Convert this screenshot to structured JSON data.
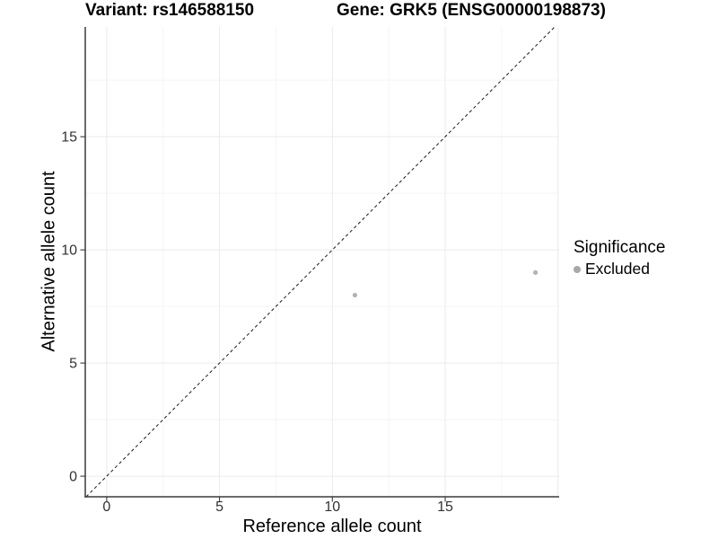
{
  "chart_data": {
    "type": "scatter",
    "title_left": "Variant: rs146588150",
    "title_right": "Gene: GRK5 (ENSG00000198873)",
    "xlabel": "Reference allele count",
    "ylabel": "Alternative allele count",
    "xlim": [
      -0.95,
      20.05
    ],
    "ylim": [
      -0.91,
      19.85
    ],
    "x_ticks": [
      0,
      5,
      10,
      15
    ],
    "y_ticks": [
      0,
      5,
      10,
      15
    ],
    "x_grid_major": [
      0,
      5,
      10,
      15,
      20
    ],
    "y_grid_major": [
      0,
      5,
      10,
      15
    ],
    "x_grid_minor": [
      2.5,
      7.5,
      12.5,
      17.5
    ],
    "y_grid_minor": [
      2.5,
      7.5,
      12.5,
      17.5
    ],
    "grid": true,
    "identity_line": {
      "slope": 1,
      "intercept": 0,
      "style": "dashed",
      "color": "#1a1a1a"
    },
    "series": [
      {
        "name": "Excluded",
        "color": "#b3b3b3",
        "point_radius": 2.6,
        "points": [
          {
            "x": 11,
            "y": 8
          },
          {
            "x": 19,
            "y": 9
          }
        ]
      }
    ],
    "legend": {
      "title": "Significance",
      "position": "right",
      "items": [
        {
          "label": "Excluded",
          "color": "#a8a8a8"
        }
      ]
    },
    "colors": {
      "axis_line": "#3a3a3a",
      "tick_label": "#333333",
      "grid_major": "#ebebeb",
      "grid_minor": "#f5f5f5"
    }
  }
}
